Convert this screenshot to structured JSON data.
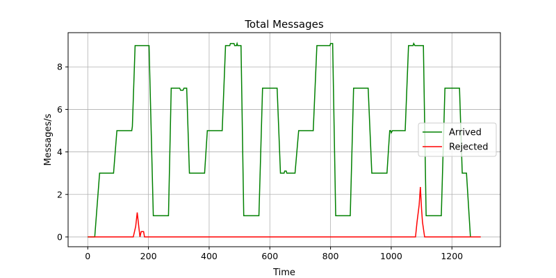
{
  "chart_data": {
    "type": "line",
    "title": "Total Messages",
    "x_label": "Time",
    "y_label": "Messages/s",
    "xlim": [
      -64.75,
      1359.75
    ],
    "ylim": [
      -0.46,
      9.61
    ],
    "xticks": [
      0,
      200,
      400,
      600,
      800,
      1000,
      1200
    ],
    "yticks": [
      0,
      2,
      4,
      6,
      8
    ],
    "grid": true,
    "legend": "center right",
    "series": [
      {
        "name": "Arrived",
        "color": "#008000",
        "x": [
          0,
          23,
          39,
          85,
          96,
          145,
          147,
          156,
          202,
          216,
          266,
          275,
          303,
          306,
          314,
          317,
          326,
          335,
          385,
          394,
          443,
          454,
          468,
          470,
          482,
          484,
          490,
          492,
          494,
          505,
          514,
          564,
          576,
          624,
          635,
          647,
          649,
          654,
          656,
          683,
          695,
          743,
          755,
          798,
          800,
          807,
          817,
          865,
          876,
          924,
          936,
          986,
          995,
          998,
          1000,
          1004,
          1046,
          1057,
          1072,
          1074,
          1078,
          1106,
          1115,
          1165,
          1177,
          1225,
          1234,
          1248,
          1261
        ],
        "values": [
          0,
          0,
          3,
          3,
          5,
          5,
          5.2,
          9,
          9,
          1,
          1,
          7,
          7,
          6.9,
          6.9,
          7,
          7,
          3,
          3,
          5,
          5,
          9,
          9,
          9.1,
          9.1,
          9,
          9,
          9.1,
          9,
          9,
          1,
          1,
          7,
          7,
          3,
          3,
          3.1,
          3.1,
          3,
          3,
          5,
          5,
          9,
          9,
          9.1,
          9.1,
          1,
          1,
          7,
          7,
          3,
          3,
          5,
          5,
          4.9,
          5,
          5,
          9,
          9,
          9.1,
          9,
          9,
          1,
          1,
          7,
          7,
          3,
          3,
          0
        ]
      },
      {
        "name": "Rejected",
        "color": "#ff0000",
        "x": [
          0,
          150,
          158,
          163,
          168,
          172,
          176,
          178,
          184,
          187,
          1080,
          1085,
          1092,
          1096,
          1100,
          1103,
          1110,
          1295
        ],
        "values": [
          0,
          0,
          0.5,
          1.15,
          0.5,
          0,
          0.25,
          0.25,
          0.25,
          0,
          0,
          0.7,
          1.5,
          2.35,
          1.3,
          0.7,
          0,
          0
        ]
      }
    ]
  }
}
